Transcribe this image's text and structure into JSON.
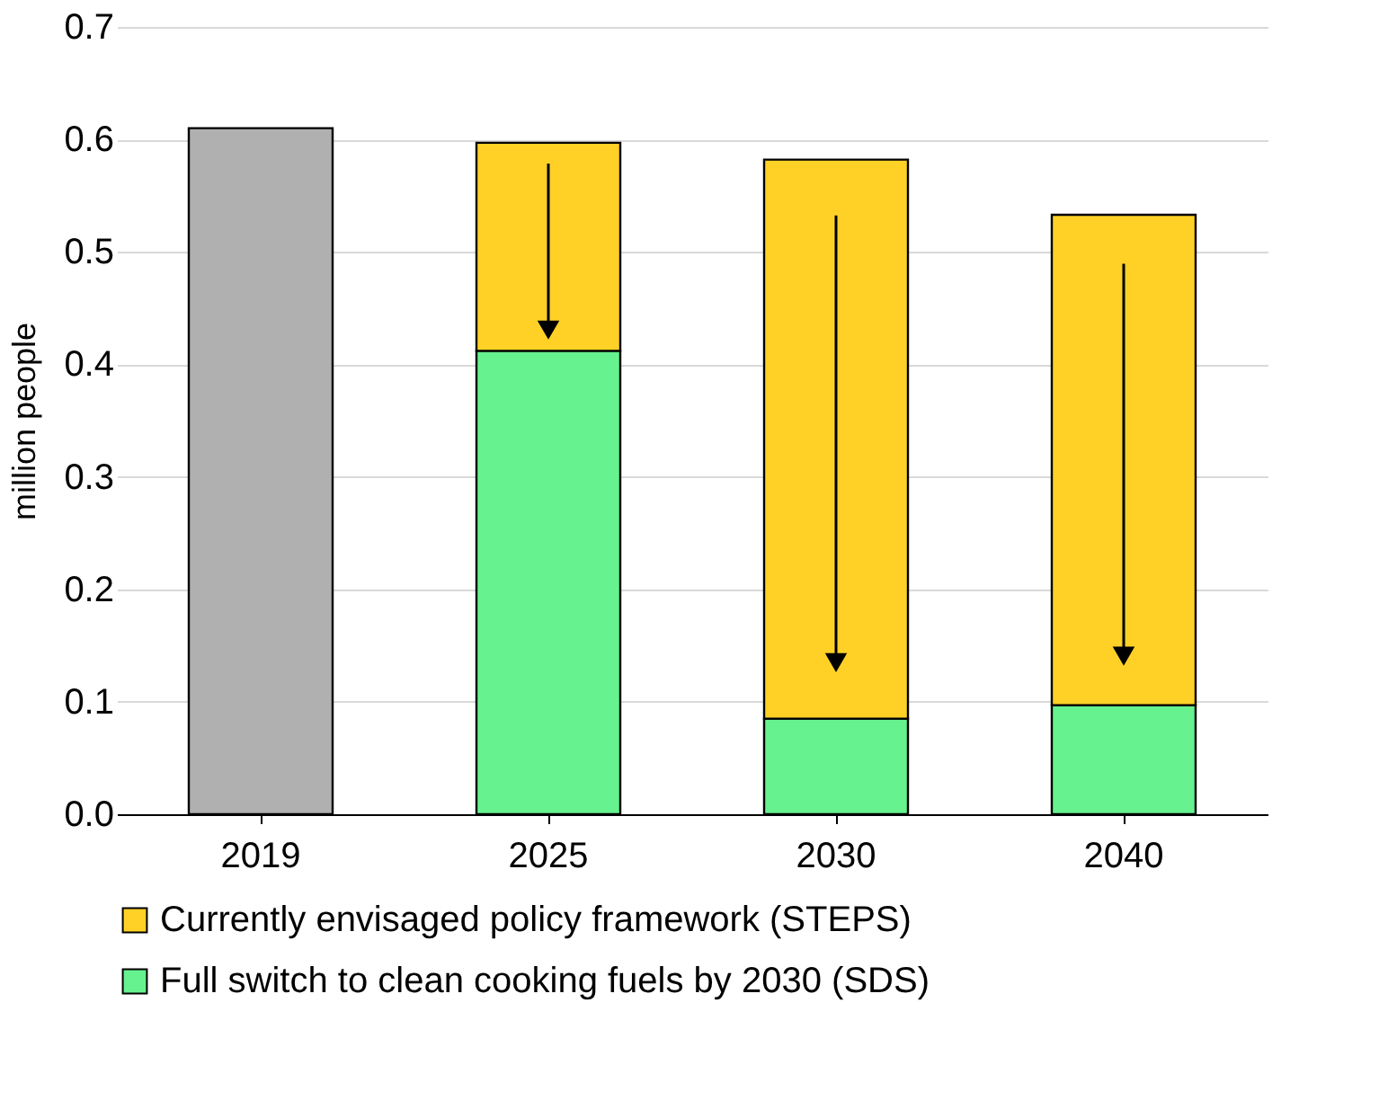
{
  "chart_data": {
    "type": "bar",
    "stacked": true,
    "ylabel": "million people",
    "categories": [
      "2019",
      "2025",
      "2030",
      "2040"
    ],
    "series": [
      {
        "color": "#b0b0b0",
        "values": [
          0.61,
          null,
          null,
          null
        ]
      },
      {
        "name": "Full switch to clean cooking fuels by 2030 (SDS)",
        "color": "#66f28e",
        "values": [
          null,
          0.412,
          0.085,
          0.097
        ]
      },
      {
        "name": "Currently envisaged policy framework (STEPS)",
        "color": "#ffd126",
        "values": [
          null,
          0.185,
          0.497,
          0.436
        ]
      }
    ],
    "ylim": [
      0,
      0.7
    ],
    "yticks": [
      {
        "value": 0,
        "label": "0.0"
      },
      {
        "value": 0.1,
        "label": "0.1"
      },
      {
        "value": 0.2,
        "label": "0.2"
      },
      {
        "value": 0.3,
        "label": "0.3"
      },
      {
        "value": 0.4,
        "label": "0.4"
      },
      {
        "value": 0.5,
        "label": "0.5"
      },
      {
        "value": 0.6,
        "label": "0.6"
      },
      {
        "value": 0.7,
        "label": "0.7"
      }
    ],
    "grid": "y",
    "legend": "bottom"
  }
}
